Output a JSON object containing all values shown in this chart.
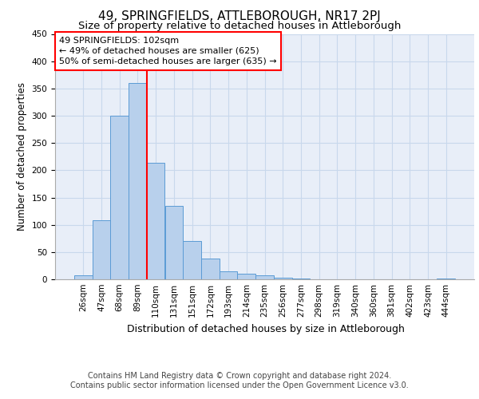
{
  "title": "49, SPRINGFIELDS, ATTLEBOROUGH, NR17 2PJ",
  "subtitle": "Size of property relative to detached houses in Attleborough",
  "xlabel": "Distribution of detached houses by size in Attleborough",
  "ylabel": "Number of detached properties",
  "footer_line1": "Contains HM Land Registry data © Crown copyright and database right 2024.",
  "footer_line2": "Contains public sector information licensed under the Open Government Licence v3.0.",
  "categories": [
    "26sqm",
    "47sqm",
    "68sqm",
    "89sqm",
    "110sqm",
    "131sqm",
    "151sqm",
    "172sqm",
    "193sqm",
    "214sqm",
    "235sqm",
    "256sqm",
    "277sqm",
    "298sqm",
    "319sqm",
    "340sqm",
    "360sqm",
    "381sqm",
    "402sqm",
    "423sqm",
    "444sqm"
  ],
  "values": [
    8,
    108,
    300,
    360,
    213,
    135,
    70,
    38,
    15,
    10,
    7,
    3,
    1,
    0,
    0,
    0,
    0,
    0,
    0,
    0,
    2
  ],
  "bar_color": "#b8d0ec",
  "bar_edge_color": "#5b9bd5",
  "vline_color": "red",
  "vline_position": 3.5,
  "annotation_text": "49 SPRINGFIELDS: 102sqm\n← 49% of detached houses are smaller (625)\n50% of semi-detached houses are larger (635) →",
  "annotation_box_color": "red",
  "ylim": [
    0,
    450
  ],
  "yticks": [
    0,
    50,
    100,
    150,
    200,
    250,
    300,
    350,
    400,
    450
  ],
  "grid_color": "#c8d8ec",
  "bg_color": "#e8eef8",
  "title_fontsize": 11,
  "subtitle_fontsize": 9.5,
  "tick_fontsize": 7.5,
  "ylabel_fontsize": 8.5,
  "xlabel_fontsize": 9,
  "footer_fontsize": 7
}
